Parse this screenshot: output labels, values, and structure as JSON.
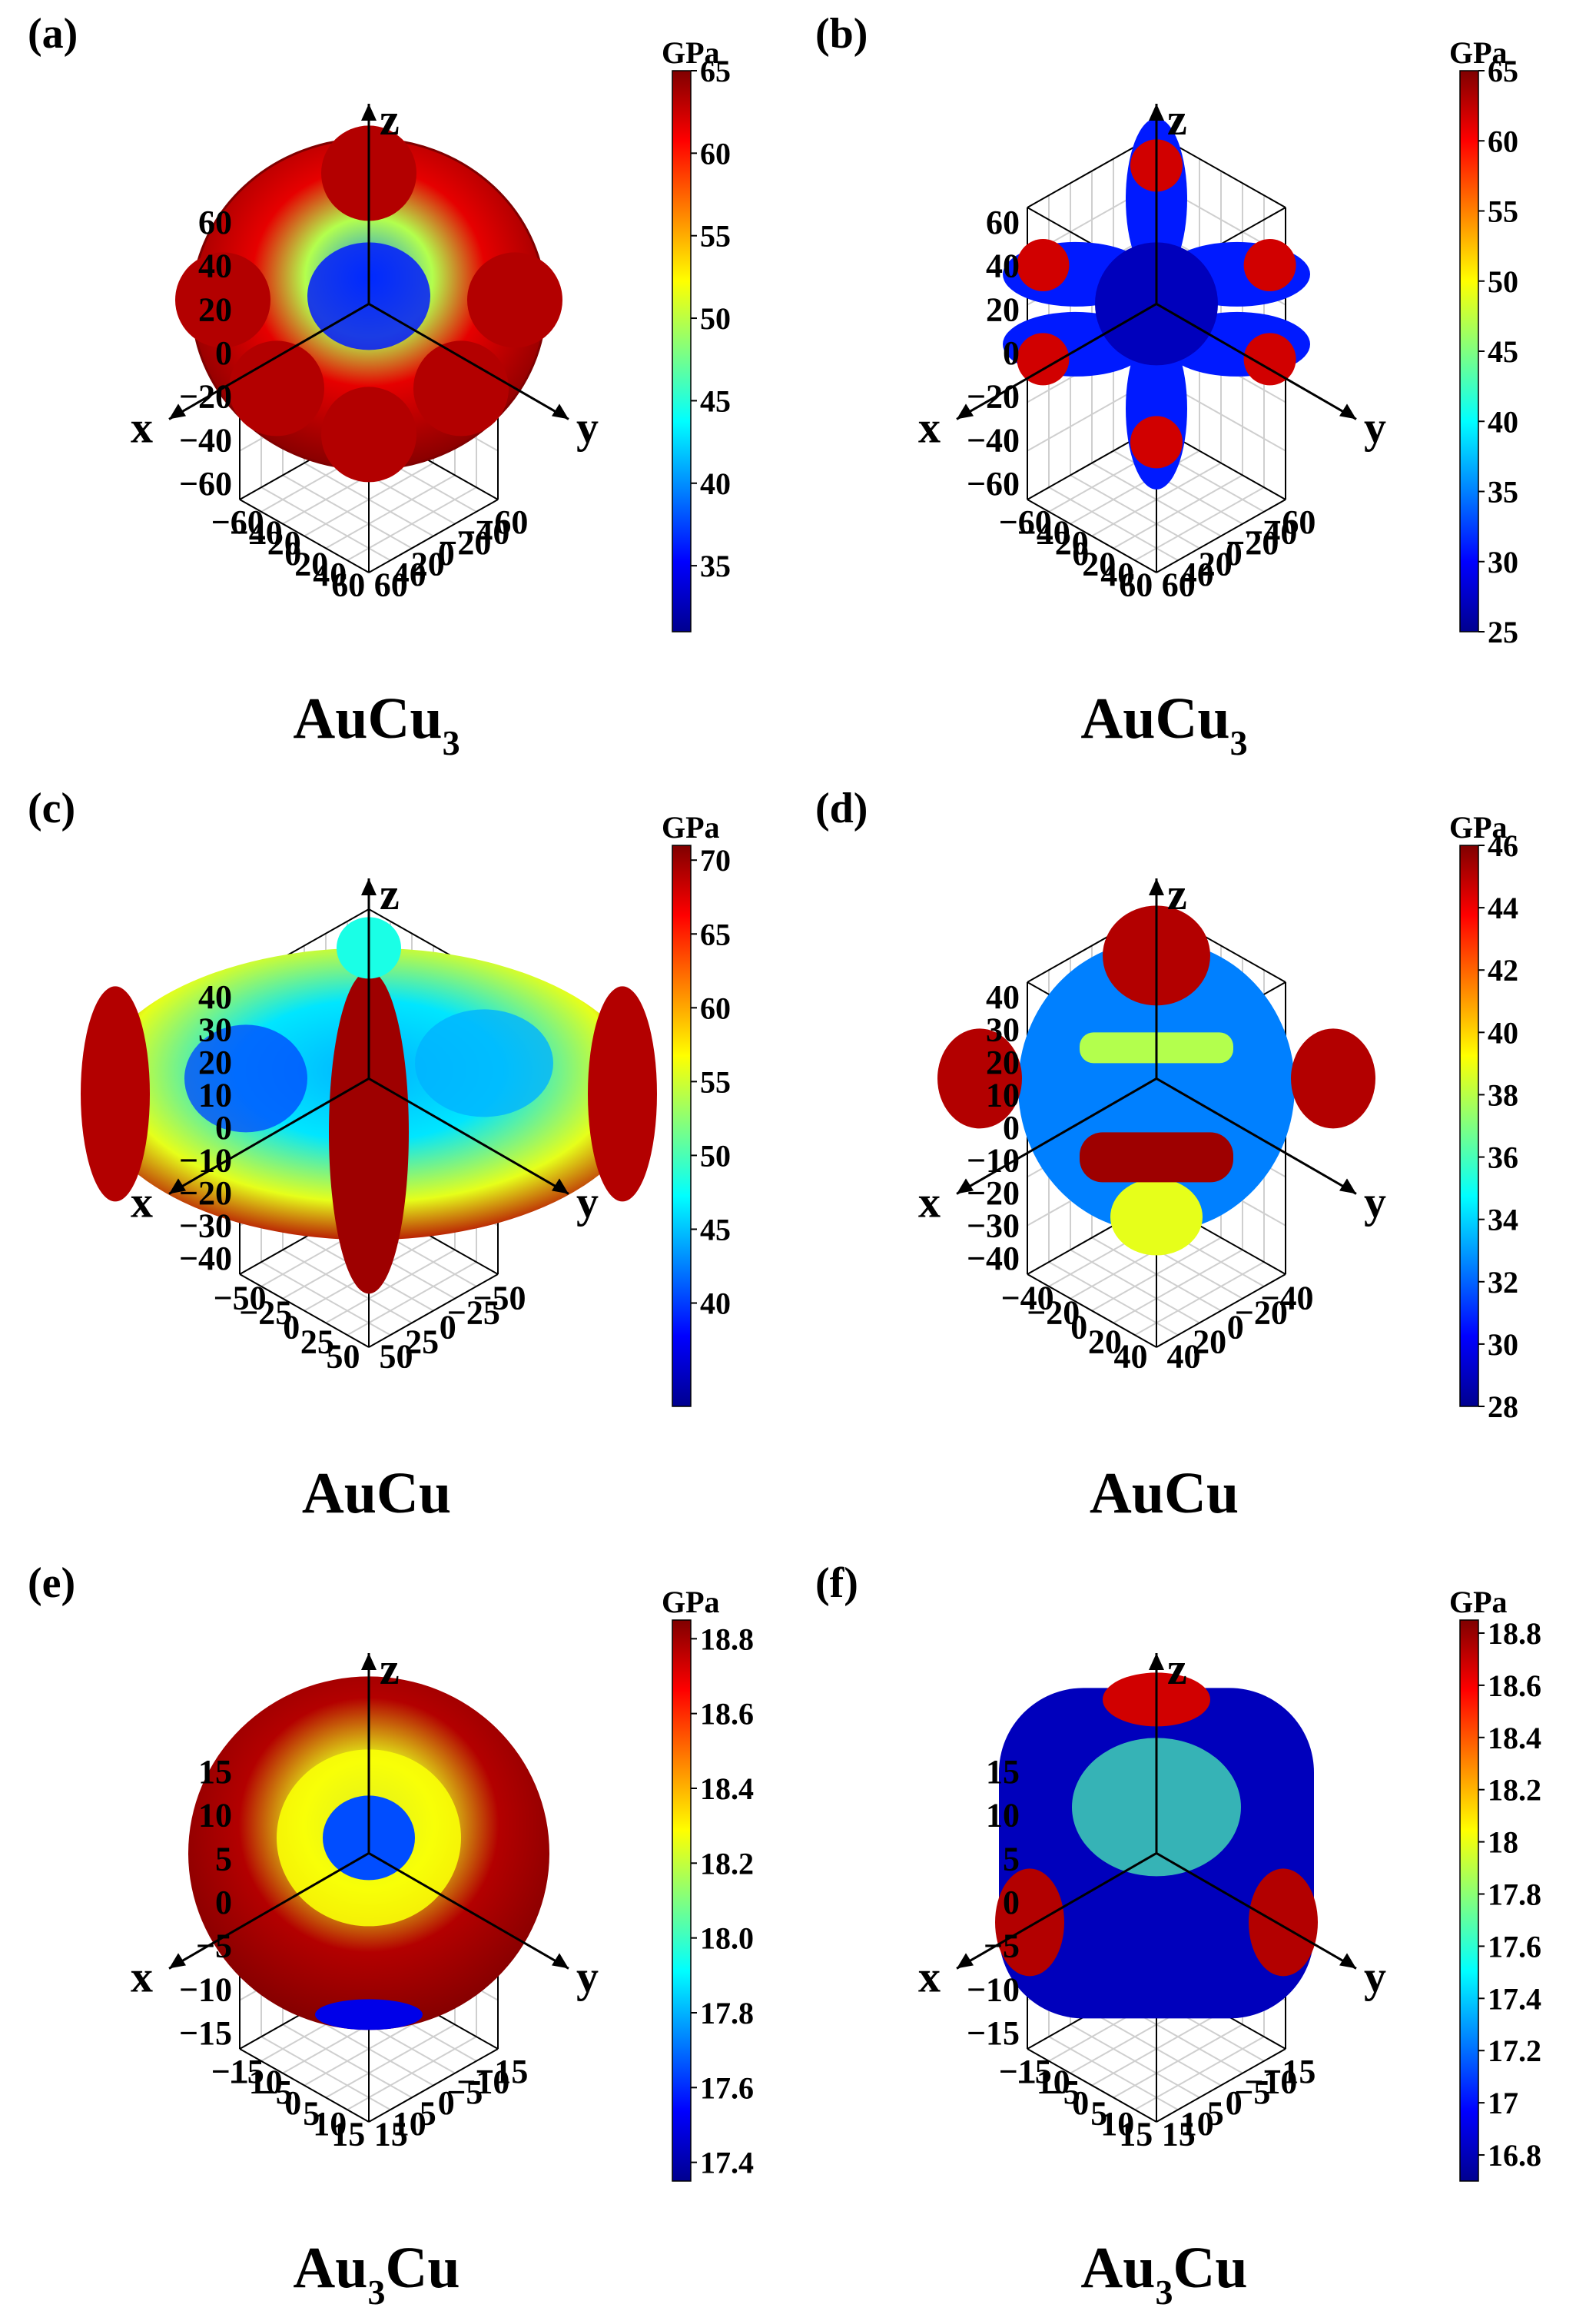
{
  "colorbar_unit": "GPa",
  "axes": {
    "x": "x",
    "y": "y",
    "z": "z"
  },
  "colormap": [
    "#00008f",
    "#0000ff",
    "#0080ff",
    "#00ffff",
    "#80ff80",
    "#ffff00",
    "#ff8000",
    "#ff0000",
    "#800000"
  ],
  "chart_data": [
    {
      "type": "surface3d",
      "label": "(a)",
      "material": {
        "base": "AuCu",
        "sub": "3",
        "suffix": ""
      },
      "colorbar": {
        "unit": "GPa",
        "min": 31,
        "max": 65,
        "ticks": [
          "35",
          "40",
          "45",
          "50",
          "55",
          "60",
          "65"
        ],
        "tickvalues": [
          35,
          40,
          45,
          50,
          55,
          60,
          65
        ]
      },
      "z_ticks": [
        "60",
        "40",
        "20",
        "0",
        "−20",
        "−40",
        "−60"
      ],
      "x_ticks": [
        "−60",
        "−40",
        "−20",
        "0",
        "20",
        "40",
        "60"
      ],
      "y_ticks": [
        "−60",
        "−40",
        "−20",
        "0",
        "20",
        "40",
        "60"
      ],
      "range": [
        -65,
        65
      ],
      "shape": "cube-lobes"
    },
    {
      "type": "surface3d",
      "label": "(b)",
      "material": {
        "base": "AuCu",
        "sub": "3",
        "suffix": ""
      },
      "colorbar": {
        "unit": "GPa",
        "min": 25,
        "max": 65,
        "ticks": [
          "25",
          "30",
          "35",
          "40",
          "45",
          "50",
          "55",
          "60",
          "65"
        ],
        "tickvalues": [
          25,
          30,
          35,
          40,
          45,
          50,
          55,
          60,
          65
        ]
      },
      "z_ticks": [
        "60",
        "40",
        "20",
        "0",
        "−20",
        "−40",
        "−60"
      ],
      "x_ticks": [
        "−60",
        "−40",
        "−20",
        "0",
        "20",
        "40",
        "60"
      ],
      "y_ticks": [
        "−60",
        "−40",
        "−20",
        "0",
        "20",
        "40",
        "60"
      ],
      "range": [
        -65,
        65
      ],
      "shape": "star"
    },
    {
      "type": "surface3d",
      "label": "(c)",
      "material": {
        "base": "AuCu",
        "sub": "",
        "suffix": ""
      },
      "colorbar": {
        "unit": "GPa",
        "min": 33,
        "max": 71,
        "ticks": [
          "40",
          "45",
          "50",
          "55",
          "60",
          "65",
          "70"
        ],
        "tickvalues": [
          40,
          45,
          50,
          55,
          60,
          65,
          70
        ]
      },
      "z_ticks": [
        "40",
        "30",
        "20",
        "10",
        "0",
        "−10",
        "−20",
        "−30",
        "−40"
      ],
      "x_ticks": [
        "−50",
        "−25",
        "0",
        "25",
        "50"
      ],
      "y_ticks": [
        "−50",
        "−25",
        "0",
        "25",
        "50"
      ],
      "range": [
        -50,
        50
      ],
      "shape": "oblate"
    },
    {
      "type": "surface3d",
      "label": "(d)",
      "material": {
        "base": "AuCu",
        "sub": "",
        "suffix": ""
      },
      "colorbar": {
        "unit": "GPa",
        "min": 28,
        "max": 46,
        "ticks": [
          "28",
          "30",
          "32",
          "34",
          "36",
          "38",
          "40",
          "42",
          "44",
          "46"
        ],
        "tickvalues": [
          28,
          30,
          32,
          34,
          36,
          38,
          40,
          42,
          44,
          46
        ]
      },
      "z_ticks": [
        "40",
        "30",
        "20",
        "10",
        "0",
        "−10",
        "−20",
        "−30",
        "−40"
      ],
      "x_ticks": [
        "−40",
        "−20",
        "0",
        "20",
        "40"
      ],
      "y_ticks": [
        "−40",
        "−20",
        "0",
        "20",
        "40"
      ],
      "range": [
        -45,
        45
      ],
      "shape": "blob"
    },
    {
      "type": "surface3d",
      "label": "(e)",
      "material": {
        "base": "Au",
        "sub": "3",
        "suffix": "Cu"
      },
      "colorbar": {
        "unit": "GPa",
        "min": 17.35,
        "max": 18.85,
        "ticks": [
          "17.4",
          "17.6",
          "17.8",
          "18.0",
          "18.2",
          "18.4",
          "18.6",
          "18.8"
        ],
        "tickvalues": [
          17.4,
          17.6,
          17.8,
          18.0,
          18.2,
          18.4,
          18.6,
          18.8
        ]
      },
      "z_ticks": [
        "15",
        "10",
        "5",
        "0",
        "−5",
        "−10",
        "−15"
      ],
      "x_ticks": [
        "−15",
        "−10",
        "−5",
        "0",
        "5",
        "10",
        "15"
      ],
      "y_ticks": [
        "−15",
        "−10",
        "−5",
        "0",
        "5",
        "10",
        "15"
      ],
      "range": [
        -18,
        18
      ],
      "shape": "sphere"
    },
    {
      "type": "surface3d",
      "label": "(f)",
      "material": {
        "base": "Au",
        "sub": "3",
        "suffix": "Cu"
      },
      "colorbar": {
        "unit": "GPa",
        "min": 16.7,
        "max": 18.85,
        "ticks": [
          "16.8",
          "17",
          "17.2",
          "17.4",
          "17.6",
          "17.8",
          "18",
          "18.2",
          "18.4",
          "18.6",
          "18.8"
        ],
        "tickvalues": [
          16.8,
          17,
          17.2,
          17.4,
          17.6,
          17.8,
          18,
          18.2,
          18.4,
          18.6,
          18.8
        ]
      },
      "z_ticks": [
        "15",
        "10",
        "5",
        "0",
        "−5",
        "−10",
        "−15"
      ],
      "x_ticks": [
        "−15",
        "−10",
        "−5",
        "0",
        "5",
        "10",
        "15"
      ],
      "y_ticks": [
        "−15",
        "−10",
        "−5",
        "0",
        "5",
        "10",
        "15"
      ],
      "range": [
        -18,
        18
      ],
      "shape": "rounded-cube"
    }
  ]
}
